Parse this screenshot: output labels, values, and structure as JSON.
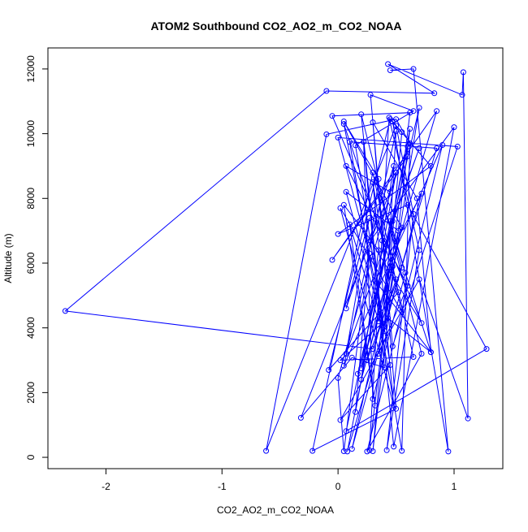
{
  "chart_data": {
    "type": "line",
    "title": "ATOM2 Southbound CO2_AO2_m_CO2_NOAA",
    "xlabel": "CO2_AO2_m_CO2_NOAA",
    "ylabel": "Altitude (m)",
    "xlim": [
      -2.5,
      1.42
    ],
    "ylim": [
      -350,
      12650
    ],
    "x_ticks": [
      -2,
      -1,
      0,
      1
    ],
    "x_tick_labels": [
      "-2",
      "-1",
      "0",
      "1"
    ],
    "y_ticks": [
      0,
      2000,
      4000,
      6000,
      8000,
      10000,
      12000
    ],
    "y_tick_labels": [
      "0",
      "2000",
      "4000",
      "6000",
      "8000",
      "10000",
      "12000"
    ],
    "grid": false,
    "legend": "none",
    "line_color": "#0000ff",
    "marker": "open-circle",
    "series": [
      {
        "x": [
          0.45,
          0.65,
          0.95,
          0.47,
          0.55,
          0.3,
          0.62,
          0.08,
          0.85,
          0.1,
          0.55,
          0.62,
          0.5,
          -0.1,
          -0.62,
          0.5,
          0.65,
          0.42,
          0.7,
          0.44,
          0.27,
          0.62,
          -0.05,
          0.72,
          0.28,
          1.0,
          0.48,
          0.2,
          0.72,
          0.25,
          0.9,
          0.05,
          0.5,
          0.4,
          0.7,
          0.17,
          0.6,
          -0.05,
          0.85,
          0.2,
          0.5,
          0.0,
          0.05,
          0.35,
          0.05,
          0.55,
          0.12,
          0.72,
          0.32,
          0.8,
          0.68,
          0.3,
          0.5,
          -0.22,
          0.3,
          0.52,
          -0.08,
          0.45,
          0.8,
          0.0,
          0.6,
          1.28,
          0.07,
          0.6,
          -0.32,
          0.12,
          0.4,
          0.22,
          0.3,
          0.58,
          0.45,
          0.15,
          0.27,
          0.0,
          1.03,
          0.47,
          0.28,
          0.65,
          0.15,
          0.3,
          0.45,
          0.02,
          0.7,
          1.12,
          1.08,
          1.07,
          0.43,
          0.83,
          -0.1,
          -2.35,
          0.3,
          0.5,
          0.05,
          0.4,
          0.07,
          0.52,
          0.25,
          0.55,
          0.33,
          0.8,
          0.43,
          0.02,
          0.65,
          0.47,
          0.2,
          0.35,
          0.05,
          0.32,
          0.1,
          0.35,
          0.45,
          0.55,
          0.02,
          0.48,
          0.3,
          0.38,
          0.48,
          0.07,
          0.27,
          0.07,
          0.7,
          0.47,
          0.35,
          0.6,
          0.07,
          0.45
        ],
        "y": [
          11960,
          12000,
          180,
          10380,
          10050,
          190,
          10150,
          180,
          9550,
          9750,
          200,
          9700,
          10450,
          9980,
          200,
          10250,
          7520,
          220,
          6400,
          10500,
          220,
          10650,
          10550,
          4150,
          6700,
          10200,
          330,
          10600,
          3200,
          180,
          9650,
          2830,
          10080,
          4050,
          10800,
          2580,
          9300,
          6100,
          10700,
          2750,
          8800,
          2450,
          190,
          8600,
          10380,
          7100,
          260,
          8150,
          5450,
          3250,
          8000,
          10350,
          1500,
          200,
          8800,
          5100,
          2700,
          10450,
          9000,
          6900,
          7800,
          3350,
          810,
          9600,
          1220,
          3080,
          2780,
          9750,
          1800,
          5700,
          7300,
          1400,
          6300,
          9880,
          9600,
          3430,
          11200,
          10700,
          9640,
          6200,
          2850,
          1150,
          5500,
          1200,
          11900,
          11200,
          12150,
          11250,
          11320,
          4520,
          3350,
          5500,
          10300,
          3900,
          8200,
          7000,
          3000,
          5860,
          8500,
          3250,
          4300,
          3000,
          3100,
          5900,
          2400,
          6400,
          7800,
          1600,
          7200,
          4200,
          6000,
          4500,
          7700,
          1600,
          8500,
          6700,
          9000,
          4600,
          7400,
          3200,
          9550,
          7300,
          3200,
          5300,
          9000,
          8200
        ]
      }
    ]
  }
}
